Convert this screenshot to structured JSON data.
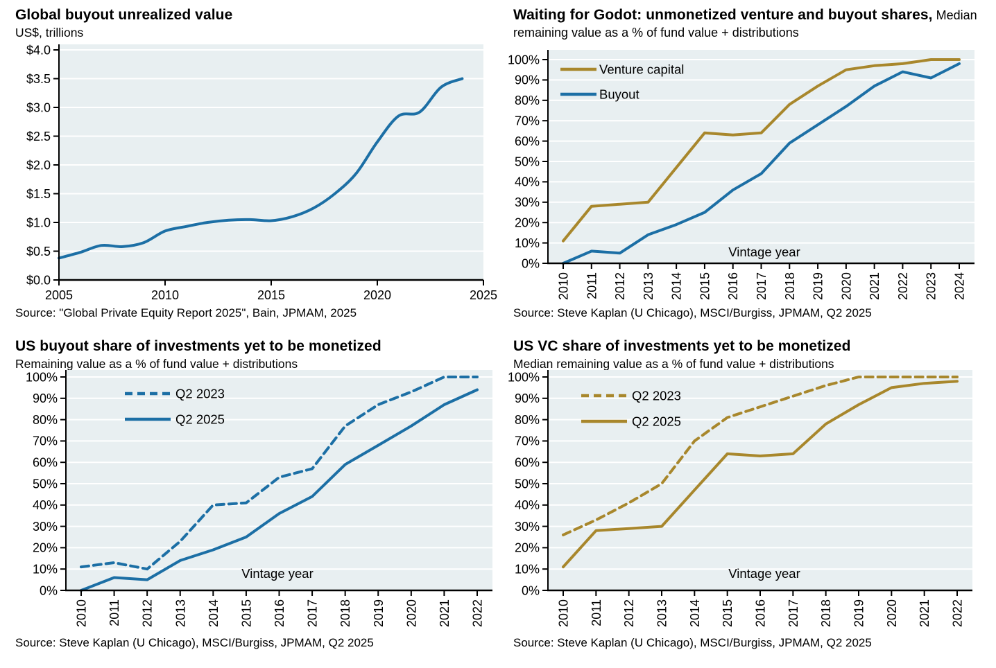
{
  "colors": {
    "blue": "#1c6fa5",
    "gold": "#a8872c",
    "plot_background": "#e8eff1",
    "gridline": "#ffffff",
    "axis": "#000000",
    "text": "#000000"
  },
  "cells": [
    {
      "title_bold": "Global buyout unrealized value",
      "title_tail": "",
      "subtitle": "US$, trillions",
      "source": "Source: \"Global Private Equity Report 2025\", Bain, JPMAM, 2025"
    },
    {
      "title_bold": "Waiting for Godot: unmonetized venture and buyout shares,",
      "title_tail": " Median remaining value as a % of fund value + distributions",
      "subtitle": "",
      "source": "Source: Steve Kaplan (U Chicago), MSCI/Burgiss, JPMAM, Q2 2025"
    },
    {
      "title_bold": "US buyout share of investments yet to be monetized",
      "title_tail": "",
      "subtitle": "Remaining value as a % of fund value + distributions",
      "source": "Source: Steve Kaplan (U Chicago), MSCI/Burgiss, JPMAM, Q2 2025"
    },
    {
      "title_bold": "US VC share of investments yet to be monetized",
      "title_tail": "",
      "subtitle": "Median remaining value as a % of fund value + distributions",
      "source": "Source: Steve Kaplan (U Chicago), MSCI/Burgiss, JPMAM, Q2 2025"
    }
  ],
  "chart_data": [
    {
      "type": "line",
      "title": "Global buyout unrealized value",
      "ylabel": "US$, trillions",
      "xlabel": "",
      "x": [
        2005,
        2006,
        2007,
        2008,
        2009,
        2010,
        2011,
        2012,
        2013,
        2014,
        2015,
        2016,
        2017,
        2018,
        2019,
        2020,
        2021,
        2022,
        2023,
        2024
      ],
      "x_ticks": [
        2005,
        2010,
        2015,
        2020,
        2025
      ],
      "x_range": [
        2005,
        2025
      ],
      "ylim": [
        0,
        4
      ],
      "y_step": 0.5,
      "y_format": "dollar",
      "grid": true,
      "legend": null,
      "series": [
        {
          "name": "Global buyout unrealized value",
          "color": "#1c6fa5",
          "dash": false,
          "smooth": true,
          "values": [
            0.38,
            0.48,
            0.6,
            0.58,
            0.65,
            0.85,
            0.93,
            1.0,
            1.04,
            1.05,
            1.03,
            1.1,
            1.25,
            1.5,
            1.85,
            2.4,
            2.85,
            2.92,
            3.35,
            3.5
          ]
        }
      ]
    },
    {
      "type": "line",
      "title": "Waiting for Godot: unmonetized venture and buyout shares",
      "ylabel": "Median remaining value as a % of fund value + distributions",
      "xlabel": "Vintage year",
      "categories": [
        "2010",
        "2011",
        "2012",
        "2013",
        "2014",
        "2015",
        "2016",
        "2017",
        "2018",
        "2019",
        "2020",
        "2021",
        "2022",
        "2023",
        "2024"
      ],
      "ylim": [
        0,
        100
      ],
      "y_step": 10,
      "y_format": "percent",
      "grid": true,
      "legend": "inside-top-left",
      "series": [
        {
          "name": "Venture capital",
          "color": "#a8872c",
          "dash": false,
          "smooth": false,
          "values": [
            11,
            28,
            29,
            30,
            47,
            64,
            63,
            64,
            78,
            87,
            95,
            97,
            98,
            100,
            100
          ]
        },
        {
          "name": "Buyout",
          "color": "#1c6fa5",
          "dash": false,
          "smooth": false,
          "values": [
            0,
            6,
            5,
            14,
            19,
            25,
            36,
            44,
            59,
            68,
            77,
            87,
            94,
            91,
            98
          ]
        }
      ]
    },
    {
      "type": "line",
      "title": "US buyout share of investments yet to be monetized",
      "ylabel": "Remaining value as a % of fund value + distributions",
      "xlabel": "Vintage year",
      "categories": [
        "2010",
        "2011",
        "2012",
        "2013",
        "2014",
        "2015",
        "2016",
        "2017",
        "2018",
        "2019",
        "2020",
        "2021",
        "2022"
      ],
      "ylim": [
        0,
        100
      ],
      "y_step": 10,
      "y_format": "percent",
      "grid": true,
      "legend": "inside-top-left",
      "series": [
        {
          "name": "Q2 2023",
          "color": "#1c6fa5",
          "dash": true,
          "smooth": false,
          "values": [
            11,
            13,
            10,
            23,
            40,
            41,
            53,
            57,
            77,
            87,
            93,
            100,
            100
          ]
        },
        {
          "name": "Q2 2025",
          "color": "#1c6fa5",
          "dash": false,
          "smooth": false,
          "values": [
            0,
            6,
            5,
            14,
            19,
            25,
            36,
            44,
            59,
            68,
            77,
            87,
            94
          ]
        }
      ]
    },
    {
      "type": "line",
      "title": "US VC share of investments yet to be monetized",
      "ylabel": "Median remaining value as a % of fund value + distributions",
      "xlabel": "Vintage year",
      "categories": [
        "2010",
        "2011",
        "2012",
        "2013",
        "2014",
        "2015",
        "2016",
        "2017",
        "2018",
        "2019",
        "2020",
        "2021",
        "2022"
      ],
      "ylim": [
        0,
        100
      ],
      "y_step": 10,
      "y_format": "percent",
      "grid": true,
      "legend": "inside-top-left",
      "series": [
        {
          "name": "Q2 2023",
          "color": "#a8872c",
          "dash": true,
          "smooth": false,
          "values": [
            26,
            33,
            41,
            50,
            70,
            81,
            86,
            91,
            96,
            100,
            100,
            100,
            100
          ]
        },
        {
          "name": "Q2 2025",
          "color": "#a8872c",
          "dash": false,
          "smooth": false,
          "values": [
            11,
            28,
            29,
            30,
            47,
            64,
            63,
            64,
            78,
            87,
            95,
            97,
            98
          ]
        }
      ]
    }
  ]
}
